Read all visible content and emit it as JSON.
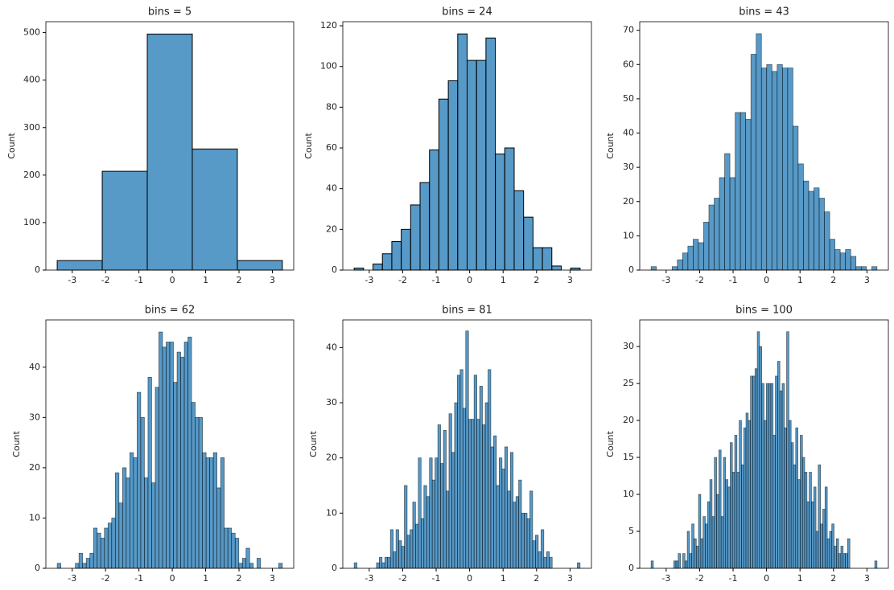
{
  "chart_data": [
    {
      "type": "histogram",
      "title": "bins = 5",
      "ylabel": "Count",
      "color": "#1f77b4",
      "bins": [
        -3.45,
        -2.1,
        -0.75,
        0.6,
        1.95,
        3.3
      ],
      "counts": [
        20,
        208,
        497,
        255,
        20
      ],
      "xlim": [
        -3.79,
        3.64
      ],
      "ylim": [
        0,
        523
      ],
      "xticks": [
        -3,
        -2,
        -1,
        0,
        1,
        2,
        3
      ],
      "yticks": [
        0,
        100,
        200,
        300,
        400,
        500
      ]
    },
    {
      "type": "histogram",
      "title": "bins = 24",
      "ylabel": "Count",
      "color": "#1f77b4",
      "bins": [
        -3.45,
        -3.16875,
        -2.8875,
        -2.60625,
        -2.325,
        -2.04375,
        -1.7625,
        -1.48125,
        -1.2,
        -0.91875,
        -0.6375,
        -0.35625,
        -0.075,
        0.20625,
        0.4875,
        0.76875,
        1.05,
        1.33125,
        1.6125,
        1.89375,
        2.175,
        2.45625,
        2.7375,
        3.01875,
        3.3
      ],
      "counts": [
        1,
        0,
        3,
        8,
        14,
        20,
        32,
        43,
        59,
        84,
        93,
        116,
        103,
        103,
        114,
        57,
        60,
        39,
        26,
        11,
        11,
        2,
        0,
        1
      ],
      "xlim": [
        -3.79,
        3.64
      ],
      "ylim": [
        0,
        122
      ],
      "xticks": [
        -3,
        -2,
        -1,
        0,
        1,
        2,
        3
      ],
      "yticks": [
        0,
        20,
        40,
        60,
        80,
        100,
        120
      ]
    },
    {
      "type": "histogram",
      "title": "bins = 43",
      "ylabel": "Count",
      "color": "#1f77b4",
      "bins": [
        -3.45,
        -3.293,
        -3.136,
        -2.979,
        -2.822,
        -2.665,
        -2.508,
        -2.351,
        -2.194,
        -2.037,
        -1.88,
        -1.723,
        -1.566,
        -1.409,
        -1.252,
        -1.095,
        -0.938,
        -0.781,
        -0.624,
        -0.467,
        -0.31,
        -0.153,
        0.003,
        0.16,
        0.317,
        0.474,
        0.631,
        0.788,
        0.945,
        1.102,
        1.259,
        1.416,
        1.573,
        1.73,
        1.887,
        2.044,
        2.201,
        2.358,
        2.515,
        2.672,
        2.829,
        2.986,
        3.143,
        3.3
      ],
      "counts": [
        1,
        0,
        0,
        0,
        1,
        3,
        5,
        7,
        9,
        8,
        14,
        19,
        21,
        27,
        34,
        27,
        46,
        46,
        44,
        63,
        69,
        59,
        60,
        58,
        60,
        59,
        59,
        42,
        31,
        26,
        23,
        24,
        21,
        17,
        9,
        6,
        5,
        6,
        4,
        1,
        1,
        0,
        1
      ],
      "xlim": [
        -3.79,
        3.64
      ],
      "ylim": [
        0,
        72.5
      ],
      "xticks": [
        -3,
        -2,
        -1,
        0,
        1,
        2,
        3
      ],
      "yticks": [
        0,
        10,
        20,
        30,
        40,
        50,
        60,
        70
      ]
    },
    {
      "type": "histogram",
      "title": "bins = 62",
      "ylabel": "Count",
      "color": "#1f77b4",
      "bins": [
        -3.45,
        -3.341,
        -3.232,
        -3.123,
        -3.015,
        -2.906,
        -2.797,
        -2.688,
        -2.579,
        -2.47,
        -2.361,
        -2.252,
        -2.144,
        -2.035,
        -1.926,
        -1.817,
        -1.708,
        -1.599,
        -1.49,
        -1.381,
        -1.273,
        -1.164,
        -1.055,
        -0.946,
        -0.837,
        -0.728,
        -0.619,
        -0.51,
        -0.402,
        -0.293,
        -0.184,
        -0.075,
        0.034,
        0.143,
        0.252,
        0.36,
        0.469,
        0.578,
        0.687,
        0.796,
        0.905,
        1.014,
        1.123,
        1.231,
        1.34,
        1.449,
        1.558,
        1.667,
        1.776,
        1.885,
        1.994,
        2.102,
        2.211,
        2.32,
        2.429,
        2.538,
        2.647,
        2.756,
        2.865,
        2.973,
        3.082,
        3.191,
        3.3
      ],
      "counts": [
        1,
        0,
        0,
        0,
        0,
        1,
        3,
        1,
        2,
        3,
        8,
        7,
        6,
        8,
        9,
        10,
        19,
        13,
        20,
        18,
        23,
        22,
        35,
        30,
        18,
        38,
        17,
        36,
        47,
        44,
        45,
        45,
        37,
        43,
        42,
        45,
        46,
        33,
        30,
        30,
        23,
        22,
        22,
        23,
        16,
        22,
        8,
        8,
        7,
        6,
        1,
        2,
        4,
        1,
        0,
        2,
        0,
        0,
        0,
        0,
        0,
        1
      ],
      "xlim": [
        -3.79,
        3.64
      ],
      "ylim": [
        0,
        49.4
      ],
      "xticks": [
        -3,
        -2,
        -1,
        0,
        1,
        2,
        3
      ],
      "yticks": [
        0,
        10,
        20,
        30,
        40
      ]
    },
    {
      "type": "histogram",
      "title": "bins = 81",
      "ylabel": "Count",
      "color": "#1f77b4",
      "bins": [
        -3.45,
        -3.367,
        -3.283,
        -3.2,
        -3.117,
        -3.033,
        -2.95,
        -2.867,
        -2.783,
        -2.7,
        -2.617,
        -2.533,
        -2.45,
        -2.367,
        -2.283,
        -2.2,
        -2.117,
        -2.033,
        -1.95,
        -1.867,
        -1.783,
        -1.7,
        -1.617,
        -1.533,
        -1.45,
        -1.367,
        -1.283,
        -1.2,
        -1.117,
        -1.033,
        -0.95,
        -0.867,
        -0.783,
        -0.7,
        -0.617,
        -0.533,
        -0.45,
        -0.367,
        -0.283,
        -0.2,
        -0.117,
        -0.033,
        0.05,
        0.133,
        0.217,
        0.3,
        0.383,
        0.467,
        0.55,
        0.633,
        0.717,
        0.8,
        0.883,
        0.967,
        1.05,
        1.133,
        1.217,
        1.3,
        1.383,
        1.467,
        1.55,
        1.633,
        1.717,
        1.8,
        1.883,
        1.967,
        2.05,
        2.133,
        2.217,
        2.3,
        2.383,
        2.467,
        2.55,
        2.633,
        2.717,
        2.8,
        2.883,
        2.967,
        3.05,
        3.133,
        3.217,
        3.3
      ],
      "counts": [
        1,
        0,
        0,
        0,
        0,
        0,
        0,
        0,
        1,
        2,
        1,
        2,
        2,
        7,
        3,
        7,
        5,
        4,
        15,
        6,
        7,
        12,
        8,
        20,
        9,
        15,
        13,
        20,
        16,
        20,
        26,
        19,
        25,
        14,
        28,
        21,
        30,
        35,
        36,
        29,
        43,
        27,
        27,
        35,
        27,
        33,
        26,
        30,
        36,
        22,
        24,
        15,
        20,
        18,
        22,
        14,
        21,
        12,
        13,
        16,
        10,
        10,
        9,
        14,
        5,
        6,
        3,
        7,
        2,
        3,
        2,
        0,
        0,
        0,
        0,
        0,
        0,
        0,
        0,
        0,
        1
      ],
      "xlim": [
        -3.79,
        3.64
      ],
      "ylim": [
        0,
        45
      ],
      "xticks": [
        -3,
        -2,
        -1,
        0,
        1,
        2,
        3
      ],
      "yticks": [
        0,
        10,
        20,
        30,
        40
      ]
    },
    {
      "type": "histogram",
      "title": "bins = 100",
      "ylabel": "Count",
      "color": "#1f77b4",
      "bins": [
        -3.45,
        -3.3825,
        -3.315,
        -3.2475,
        -3.18,
        -3.1125,
        -3.045,
        -2.9775,
        -2.91,
        -2.8425,
        -2.775,
        -2.7075,
        -2.64,
        -2.5725,
        -2.505,
        -2.4375,
        -2.37,
        -2.3025,
        -2.235,
        -2.1675,
        -2.1,
        -2.0325,
        -1.965,
        -1.8975,
        -1.83,
        -1.7625,
        -1.695,
        -1.6275,
        -1.56,
        -1.4925,
        -1.425,
        -1.3575,
        -1.29,
        -1.2225,
        -1.155,
        -1.0875,
        -1.02,
        -0.9525,
        -0.885,
        -0.8175,
        -0.75,
        -0.6825,
        -0.615,
        -0.5475,
        -0.48,
        -0.4125,
        -0.345,
        -0.2775,
        -0.21,
        -0.1425,
        -0.075,
        -0.0075,
        0.06,
        0.1275,
        0.195,
        0.2625,
        0.33,
        0.3975,
        0.465,
        0.5325,
        0.6,
        0.6675,
        0.735,
        0.8025,
        0.87,
        0.9375,
        1.005,
        1.0725,
        1.14,
        1.2075,
        1.275,
        1.3425,
        1.41,
        1.4775,
        1.545,
        1.6125,
        1.68,
        1.7475,
        1.815,
        1.8825,
        1.95,
        2.0175,
        2.085,
        2.1525,
        2.22,
        2.2875,
        2.355,
        2.4225,
        2.49,
        2.5575,
        2.625,
        2.6925,
        2.76,
        2.8275,
        2.895,
        2.9625,
        3.03,
        3.0975,
        3.165,
        3.2325,
        3.3
      ],
      "counts": [
        1,
        0,
        0,
        0,
        0,
        0,
        0,
        0,
        0,
        0,
        1,
        1,
        2,
        0,
        2,
        1,
        5,
        2,
        6,
        4,
        3,
        10,
        4,
        7,
        6,
        9,
        12,
        7,
        15,
        10,
        16,
        7,
        15,
        12,
        11,
        17,
        13,
        18,
        13,
        20,
        14,
        19,
        21,
        20,
        26,
        26,
        27,
        32,
        30,
        25,
        20,
        25,
        25,
        25,
        18,
        26,
        28,
        24,
        25,
        19,
        32,
        20,
        17,
        14,
        19,
        12,
        18,
        15,
        13,
        9,
        13,
        9,
        11,
        5,
        14,
        6,
        8,
        11,
        4,
        5,
        6,
        3,
        4,
        2,
        3,
        2,
        2,
        4,
        0,
        0,
        0,
        0,
        0,
        0,
        0,
        0,
        0,
        0,
        0,
        1
      ],
      "xlim": [
        -3.79,
        3.64
      ],
      "ylim": [
        0,
        33.6
      ],
      "xticks": [
        -3,
        -2,
        -1,
        0,
        1,
        2,
        3
      ],
      "yticks": [
        0,
        5,
        10,
        15,
        20,
        25,
        30
      ]
    }
  ]
}
